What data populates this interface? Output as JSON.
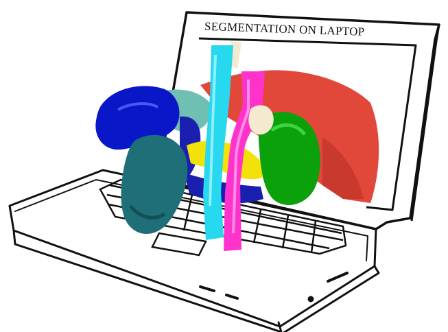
{
  "screen": {
    "title": "SEGMENTATION ON LAPTOP"
  },
  "structures": [
    {
      "name": "liver",
      "color": "#e2483a"
    },
    {
      "name": "spleen",
      "color": "#0a17c9"
    },
    {
      "name": "right-kidney",
      "color": "#1f6f78"
    },
    {
      "name": "left-kidney",
      "color": "#0aa10a"
    },
    {
      "name": "aorta",
      "color": "#ff33cc"
    },
    {
      "name": "inferior-vena-cava",
      "color": "#27d8ee"
    },
    {
      "name": "pancreas",
      "color": "#f2e10a"
    },
    {
      "name": "stomach",
      "color": "#6fbfb3"
    },
    {
      "name": "gallbladder",
      "color": "#f3ead0"
    },
    {
      "name": "portal-vein",
      "color": "#1b1fb0"
    }
  ],
  "colors": {
    "outline": "#111111",
    "background": "#ffffff"
  }
}
